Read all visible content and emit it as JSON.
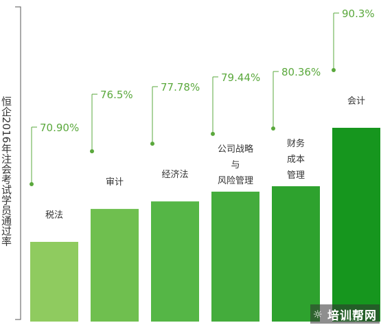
{
  "chart_data": {
    "type": "bar",
    "ylabel": "恒企2016年注会考试学员通过率",
    "categories": [
      "税法",
      "审计",
      "经济法",
      "公司战略\n与\n风险管理",
      "财务\n成本\n管理",
      "会计"
    ],
    "values": [
      70.9,
      76.5,
      77.78,
      79.44,
      80.36,
      90.3
    ],
    "value_labels": [
      "70.90%",
      "76.5%",
      "77.78%",
      "79.44%",
      "80.36%",
      "90.3%"
    ],
    "ylim": [
      0,
      100
    ],
    "grid": false,
    "legend": "none",
    "colors": [
      "#8fcb5f",
      "#6fbf4f",
      "#55b646",
      "#44ac3c",
      "#2ea22e",
      "#16961e"
    ],
    "label_color": "#5aa83c"
  },
  "watermark": {
    "text": "培训帮网",
    "icon": "sun-icon",
    "faint": "www.px"
  }
}
